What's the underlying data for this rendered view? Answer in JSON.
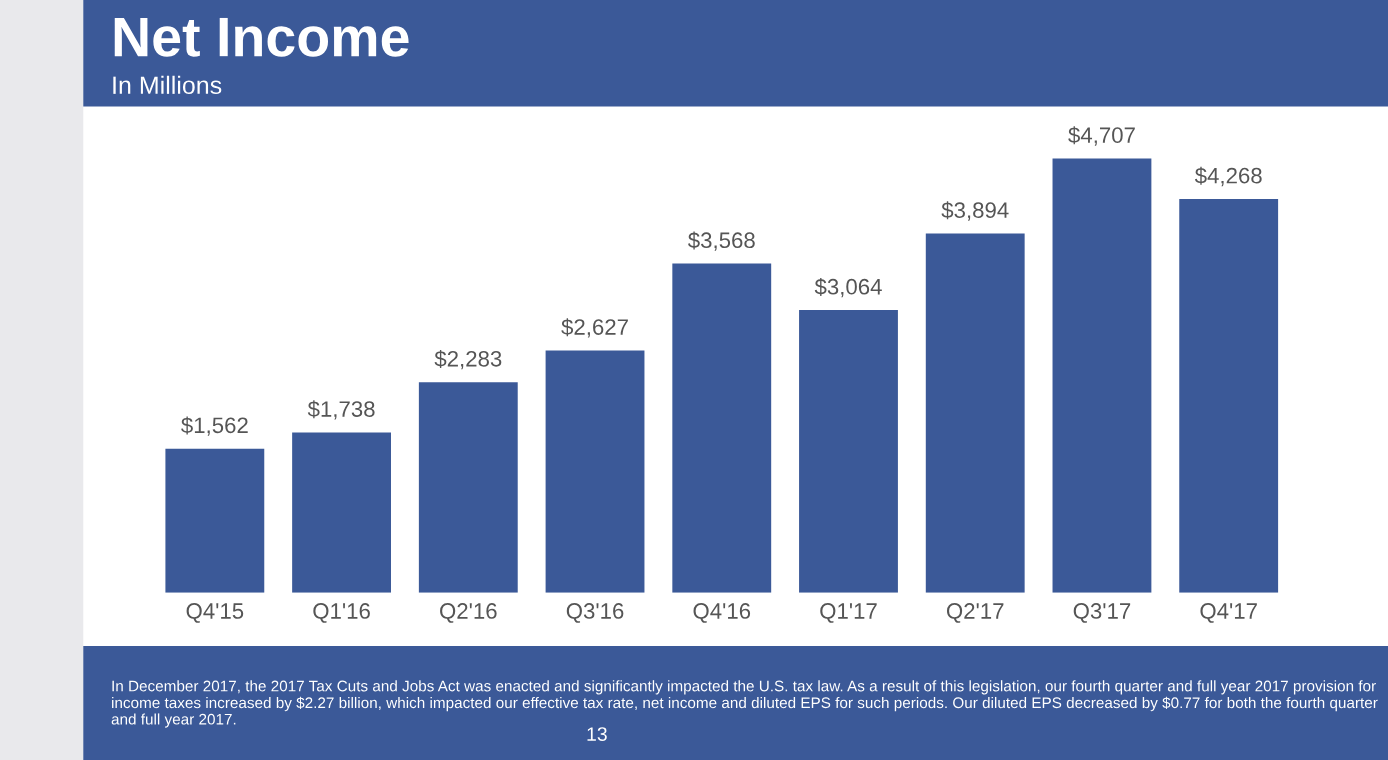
{
  "chart_data": {
    "type": "bar",
    "title": "Net Income",
    "subtitle": "In Millions",
    "categories": [
      "Q4'15",
      "Q1'16",
      "Q2'16",
      "Q3'16",
      "Q4'16",
      "Q1'17",
      "Q2'17",
      "Q3'17",
      "Q4'17"
    ],
    "values": [
      1562,
      1738,
      2283,
      2627,
      3568,
      3064,
      3894,
      4707,
      4268
    ],
    "value_labels": [
      "$1,562",
      "$1,738",
      "$2,283",
      "$2,627",
      "$3,568",
      "$3,064",
      "$3,894",
      "$4,707",
      "$4,268"
    ],
    "color": "#3b5998",
    "tick_labels": "x",
    "grid": false,
    "legend": false,
    "annotations": [
      "In December 2017, the 2017 Tax Cuts and Jobs Act was enacted and significantly impacted the U.S. tax law. As a result of this legislation, our fourth quarter and full year 2017 provision for income taxes increased by $2.27 billion, which impacted our effective tax rate, net income and diluted EPS for such periods. Our diluted EPS decreased by $0.77 for both the fourth quarter and full year 2017.",
      "13"
    ]
  }
}
